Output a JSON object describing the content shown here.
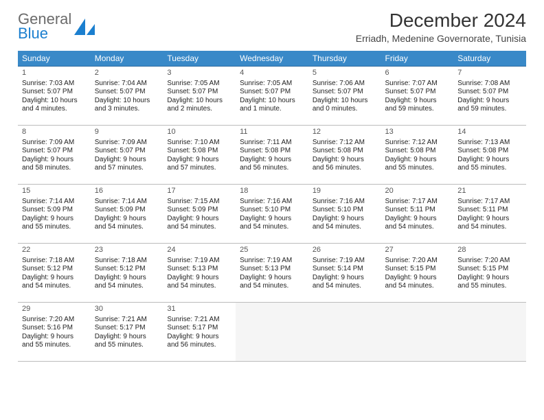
{
  "logo": {
    "top": "General",
    "bottom": "Blue"
  },
  "title": "December 2024",
  "location": "Erriadh, Medenine Governorate, Tunisia",
  "colors": {
    "header_bg": "#3989c8",
    "header_text": "#ffffff",
    "row_border": "#2c6aa0"
  },
  "weekdays": [
    "Sunday",
    "Monday",
    "Tuesday",
    "Wednesday",
    "Thursday",
    "Friday",
    "Saturday"
  ],
  "days": [
    {
      "n": "1",
      "sr": "7:03 AM",
      "ss": "5:07 PM",
      "dl": "10 hours and 4 minutes."
    },
    {
      "n": "2",
      "sr": "7:04 AM",
      "ss": "5:07 PM",
      "dl": "10 hours and 3 minutes."
    },
    {
      "n": "3",
      "sr": "7:05 AM",
      "ss": "5:07 PM",
      "dl": "10 hours and 2 minutes."
    },
    {
      "n": "4",
      "sr": "7:05 AM",
      "ss": "5:07 PM",
      "dl": "10 hours and 1 minute."
    },
    {
      "n": "5",
      "sr": "7:06 AM",
      "ss": "5:07 PM",
      "dl": "10 hours and 0 minutes."
    },
    {
      "n": "6",
      "sr": "7:07 AM",
      "ss": "5:07 PM",
      "dl": "9 hours and 59 minutes."
    },
    {
      "n": "7",
      "sr": "7:08 AM",
      "ss": "5:07 PM",
      "dl": "9 hours and 59 minutes."
    },
    {
      "n": "8",
      "sr": "7:09 AM",
      "ss": "5:07 PM",
      "dl": "9 hours and 58 minutes."
    },
    {
      "n": "9",
      "sr": "7:09 AM",
      "ss": "5:07 PM",
      "dl": "9 hours and 57 minutes."
    },
    {
      "n": "10",
      "sr": "7:10 AM",
      "ss": "5:08 PM",
      "dl": "9 hours and 57 minutes."
    },
    {
      "n": "11",
      "sr": "7:11 AM",
      "ss": "5:08 PM",
      "dl": "9 hours and 56 minutes."
    },
    {
      "n": "12",
      "sr": "7:12 AM",
      "ss": "5:08 PM",
      "dl": "9 hours and 56 minutes."
    },
    {
      "n": "13",
      "sr": "7:12 AM",
      "ss": "5:08 PM",
      "dl": "9 hours and 55 minutes."
    },
    {
      "n": "14",
      "sr": "7:13 AM",
      "ss": "5:08 PM",
      "dl": "9 hours and 55 minutes."
    },
    {
      "n": "15",
      "sr": "7:14 AM",
      "ss": "5:09 PM",
      "dl": "9 hours and 55 minutes."
    },
    {
      "n": "16",
      "sr": "7:14 AM",
      "ss": "5:09 PM",
      "dl": "9 hours and 54 minutes."
    },
    {
      "n": "17",
      "sr": "7:15 AM",
      "ss": "5:09 PM",
      "dl": "9 hours and 54 minutes."
    },
    {
      "n": "18",
      "sr": "7:16 AM",
      "ss": "5:10 PM",
      "dl": "9 hours and 54 minutes."
    },
    {
      "n": "19",
      "sr": "7:16 AM",
      "ss": "5:10 PM",
      "dl": "9 hours and 54 minutes."
    },
    {
      "n": "20",
      "sr": "7:17 AM",
      "ss": "5:11 PM",
      "dl": "9 hours and 54 minutes."
    },
    {
      "n": "21",
      "sr": "7:17 AM",
      "ss": "5:11 PM",
      "dl": "9 hours and 54 minutes."
    },
    {
      "n": "22",
      "sr": "7:18 AM",
      "ss": "5:12 PM",
      "dl": "9 hours and 54 minutes."
    },
    {
      "n": "23",
      "sr": "7:18 AM",
      "ss": "5:12 PM",
      "dl": "9 hours and 54 minutes."
    },
    {
      "n": "24",
      "sr": "7:19 AM",
      "ss": "5:13 PM",
      "dl": "9 hours and 54 minutes."
    },
    {
      "n": "25",
      "sr": "7:19 AM",
      "ss": "5:13 PM",
      "dl": "9 hours and 54 minutes."
    },
    {
      "n": "26",
      "sr": "7:19 AM",
      "ss": "5:14 PM",
      "dl": "9 hours and 54 minutes."
    },
    {
      "n": "27",
      "sr": "7:20 AM",
      "ss": "5:15 PM",
      "dl": "9 hours and 54 minutes."
    },
    {
      "n": "28",
      "sr": "7:20 AM",
      "ss": "5:15 PM",
      "dl": "9 hours and 55 minutes."
    },
    {
      "n": "29",
      "sr": "7:20 AM",
      "ss": "5:16 PM",
      "dl": "9 hours and 55 minutes."
    },
    {
      "n": "30",
      "sr": "7:21 AM",
      "ss": "5:17 PM",
      "dl": "9 hours and 55 minutes."
    },
    {
      "n": "31",
      "sr": "7:21 AM",
      "ss": "5:17 PM",
      "dl": "9 hours and 56 minutes."
    }
  ],
  "labels": {
    "sunrise": "Sunrise: ",
    "sunset": "Sunset: ",
    "daylight": "Daylight: "
  }
}
